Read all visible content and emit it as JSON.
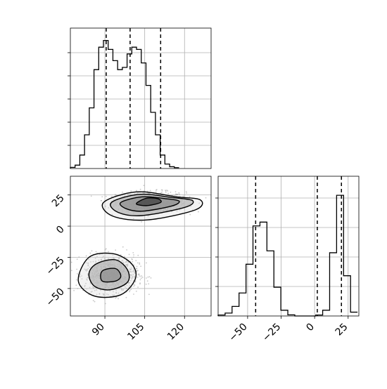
{
  "chart_data": [
    {
      "type": "histogram",
      "panel": "top-left",
      "variable": "x",
      "x_range": [
        77,
        130
      ],
      "y_ticks_labeled": false,
      "grid": true,
      "bins_x_start": 77,
      "bin_width": 1.78,
      "counts": [
        0.5,
        1.5,
        6,
        15,
        27,
        44,
        54,
        57,
        53,
        48,
        44,
        45,
        51,
        54,
        53,
        47,
        37,
        25,
        15,
        6,
        2,
        0.8,
        0.4
      ],
      "y_max": 60,
      "quantile_lines": [
        90.5,
        99.5,
        111.0
      ],
      "x_ticks": [],
      "x_tick_labels": []
    },
    {
      "type": "kde-contour-scatter",
      "panel": "bottom-left",
      "variables": [
        "x",
        "y"
      ],
      "x_range": [
        77,
        130
      ],
      "y_range": [
        -72,
        40
      ],
      "grid": true,
      "x_ticks": [
        90,
        105,
        120
      ],
      "x_tick_labels": [
        "90",
        "105",
        "120"
      ],
      "y_ticks": [
        25,
        0,
        -25,
        -50
      ],
      "y_tick_labels": [
        "25",
        "0",
        "−25",
        "−50"
      ],
      "clusters": [
        {
          "center": [
            107.5,
            19.5
          ],
          "spread": [
            6.5,
            4.0
          ],
          "contours": [
            [
              [
                89.5,
                19
              ],
              [
                102,
                27.5
              ],
              [
                117,
                23.5
              ],
              [
                126,
                21
              ],
              [
                124,
                13
              ],
              [
                106,
                5
              ],
              [
                93,
                8
              ]
            ],
            [
              [
                92.5,
                19
              ],
              [
                103,
                25.5
              ],
              [
                115,
                23
              ],
              [
                123,
                20.5
              ],
              [
                120,
                15
              ],
              [
                104,
                8.5
              ],
              [
                95,
                11
              ]
            ],
            [
              [
                96,
                19
              ],
              [
                104,
                23.5
              ],
              [
                113,
                22
              ],
              [
                118,
                20
              ],
              [
                115,
                16
              ],
              [
                104,
                12
              ],
              [
                98,
                14
              ]
            ],
            [
              [
                103,
                20
              ],
              [
                106,
                22.5
              ],
              [
                110,
                22
              ],
              [
                111,
                19
              ],
              [
                106,
                16.5
              ],
              [
                102,
                17.5
              ]
            ]
          ]
        },
        {
          "center": [
            92.5,
            -38.5
          ],
          "spread": [
            5.0,
            7.5
          ],
          "contours": [
            [
              [
                84,
                -25
              ],
              [
                93,
                -22
              ],
              [
                100,
                -30
              ],
              [
                101.5,
                -42
              ],
              [
                96,
                -55
              ],
              [
                86,
                -56
              ],
              [
                80,
                -44
              ]
            ],
            [
              [
                87,
                -30
              ],
              [
                94,
                -27
              ],
              [
                98.5,
                -35
              ],
              [
                98.5,
                -45
              ],
              [
                92,
                -51
              ],
              [
                86,
                -48
              ],
              [
                84,
                -38
              ]
            ],
            [
              [
                89,
                -36
              ],
              [
                94,
                -34
              ],
              [
                96,
                -40
              ],
              [
                94,
                -44
              ],
              [
                89,
                -44
              ]
            ]
          ]
        }
      ]
    },
    {
      "type": "histogram",
      "panel": "bottom-right",
      "variable": "y",
      "x_range": [
        -72,
        33
      ],
      "y_ticks_labeled": false,
      "grid": true,
      "bins_x_start": -72,
      "bin_width": 5.2,
      "counts": [
        0.5,
        1.5,
        5,
        12,
        27,
        47,
        49,
        34,
        15,
        3,
        0.6,
        0,
        0,
        0,
        0.5,
        3,
        33,
        63,
        21,
        2
      ],
      "y_max": 70,
      "quantile_lines": [
        -44,
        2,
        20
      ],
      "x_ticks": [
        -50,
        -25,
        0,
        25
      ],
      "x_tick_labels": [
        "−50",
        "−25",
        "0",
        "25"
      ]
    }
  ]
}
